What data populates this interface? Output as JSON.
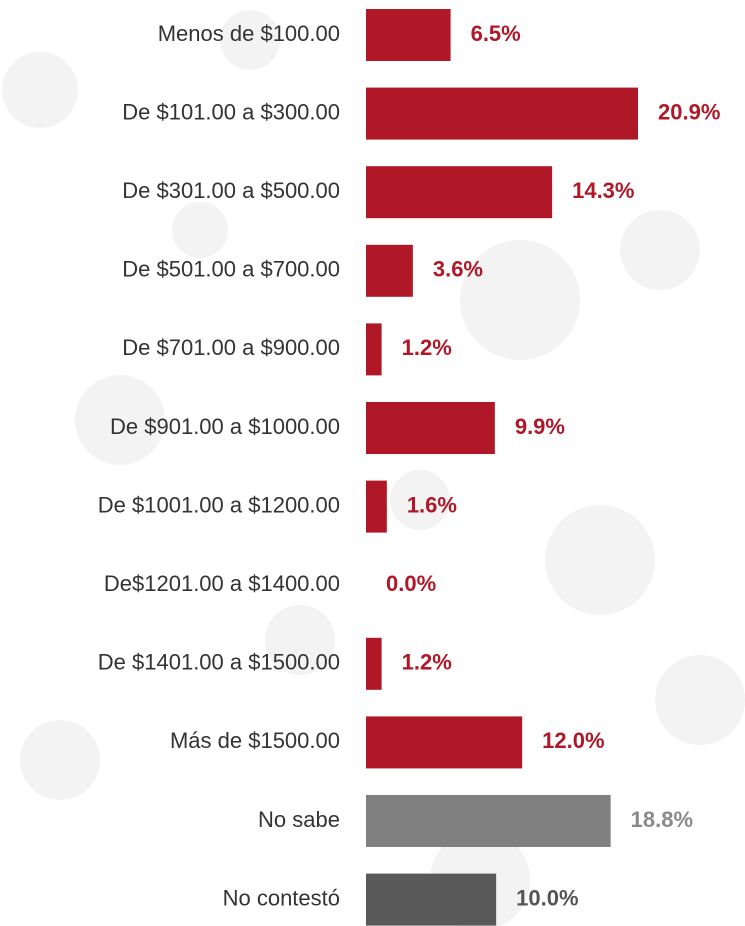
{
  "chart_data": {
    "type": "hbar",
    "categories": [
      "Menos de $100.00",
      "De $101.00 a $300.00",
      "De $301.00 a $500.00",
      "De $501.00 a $700.00",
      "De $701.00 a $900.00",
      "De $901.00 a $1000.00",
      "De $1001.00 a $1200.00",
      "De$1201.00 a $1400.00",
      "De $1401.00 a $1500.00",
      "Más de $1500.00",
      "No sabe",
      "No  contestó"
    ],
    "values": [
      6.5,
      20.9,
      14.3,
      3.6,
      1.2,
      9.9,
      1.6,
      0.0,
      1.2,
      12.0,
      18.8,
      10.0
    ],
    "value_labels": [
      "6.5%",
      "20.9%",
      "14.3%",
      "3.6%",
      "1.2%",
      "9.9%",
      "1.6%",
      "0.0%",
      "1.2%",
      "12.0%",
      "18.8%",
      "10.0%"
    ],
    "colors": [
      "#b01828",
      "#b01828",
      "#b01828",
      "#b01828",
      "#b01828",
      "#b01828",
      "#b01828",
      "#b01828",
      "#b01828",
      "#b01828",
      "#808080",
      "#595959"
    ]
  }
}
